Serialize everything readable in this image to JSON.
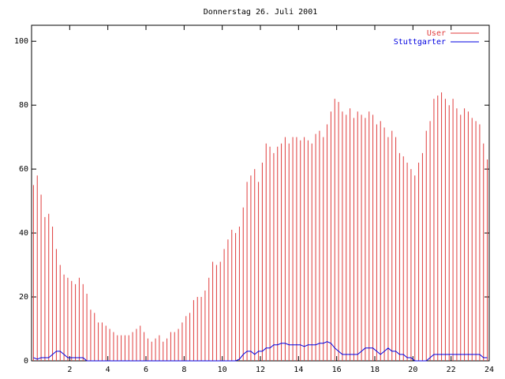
{
  "chart_data": {
    "type": "line",
    "title": "Donnerstag 26. Juli 2001",
    "x": [
      0.1,
      0.3,
      0.5,
      0.7,
      0.9,
      1.1,
      1.3,
      1.5,
      1.7,
      1.9,
      2.1,
      2.3,
      2.5,
      2.7,
      2.9,
      3.1,
      3.3,
      3.5,
      3.7,
      3.9,
      4.1,
      4.3,
      4.5,
      4.7,
      4.9,
      5.1,
      5.3,
      5.5,
      5.7,
      5.9,
      6.1,
      6.3,
      6.5,
      6.7,
      6.9,
      7.1,
      7.3,
      7.5,
      7.7,
      7.9,
      8.1,
      8.3,
      8.5,
      8.7,
      8.9,
      9.1,
      9.3,
      9.5,
      9.7,
      9.9,
      10.1,
      10.3,
      10.5,
      10.7,
      10.9,
      11.1,
      11.3,
      11.5,
      11.7,
      11.9,
      12.1,
      12.3,
      12.5,
      12.7,
      12.9,
      13.1,
      13.3,
      13.5,
      13.7,
      13.9,
      14.1,
      14.3,
      14.5,
      14.7,
      14.9,
      15.1,
      15.3,
      15.5,
      15.7,
      15.9,
      16.1,
      16.3,
      16.5,
      16.7,
      16.9,
      17.1,
      17.3,
      17.5,
      17.7,
      17.9,
      18.1,
      18.3,
      18.5,
      18.7,
      18.9,
      19.1,
      19.3,
      19.5,
      19.7,
      19.9,
      20.1,
      20.3,
      20.5,
      20.7,
      20.9,
      21.1,
      21.3,
      21.5,
      21.7,
      21.9,
      22.1,
      22.3,
      22.5,
      22.7,
      22.9,
      23.1,
      23.3,
      23.5,
      23.7,
      23.9
    ],
    "series": [
      {
        "name": "User",
        "color": "#e03c3c",
        "style": "impulses",
        "values": [
          55,
          58,
          52,
          45,
          46,
          42,
          35,
          30,
          27,
          26,
          25,
          24,
          26,
          24,
          21,
          16,
          15,
          12,
          12,
          11,
          10,
          9,
          8,
          8,
          8,
          8,
          9,
          10,
          11,
          9,
          7,
          6,
          7,
          8,
          6,
          7,
          9,
          9,
          10,
          12,
          14,
          15,
          19,
          20,
          20,
          22,
          26,
          31,
          30,
          31,
          35,
          38,
          41,
          40,
          42,
          48,
          56,
          58,
          60,
          56,
          62,
          68,
          67,
          65,
          67,
          68,
          70,
          68,
          70,
          70,
          69,
          70,
          69,
          68,
          71,
          72,
          70,
          74,
          78,
          82,
          81,
          78,
          77,
          79,
          76,
          78,
          77,
          76,
          78,
          77,
          74,
          75,
          73,
          70,
          72,
          70,
          65,
          64,
          62,
          60,
          58,
          62,
          65,
          72,
          75,
          82,
          83,
          84,
          82,
          80,
          82,
          79,
          77,
          79,
          78,
          76,
          75,
          74,
          68,
          63
        ]
      },
      {
        "name": "Stuttgarter",
        "color": "#0000e0",
        "style": "lines",
        "values": [
          1,
          0.5,
          1,
          1,
          1,
          2,
          3,
          3,
          2,
          1,
          1,
          1,
          1,
          1,
          0,
          0,
          0,
          0,
          0,
          0,
          0,
          0,
          0,
          0,
          0,
          0,
          0,
          0,
          0,
          0,
          0,
          0,
          0,
          0,
          0,
          0,
          0,
          0,
          0,
          0,
          0,
          0,
          0,
          0,
          0,
          0,
          0,
          0,
          0,
          0,
          0,
          0,
          0,
          0,
          0.5,
          2,
          3,
          3,
          2,
          3,
          3,
          4,
          4,
          5,
          5,
          5.5,
          5.5,
          5,
          5,
          5,
          5,
          4.5,
          5,
          5,
          5,
          5.5,
          5.5,
          6,
          5.5,
          4,
          3,
          2,
          2,
          2,
          2,
          2,
          3,
          4,
          4,
          4,
          3,
          2,
          3,
          4,
          3,
          3,
          2,
          2,
          1,
          1,
          0,
          0,
          0,
          0,
          1,
          2,
          2,
          2,
          2,
          2,
          2,
          2,
          2,
          2,
          2,
          2,
          2,
          2,
          1,
          1
        ]
      }
    ],
    "xlim": [
      0,
      24
    ],
    "xticks": [
      2,
      4,
      6,
      8,
      10,
      12,
      14,
      16,
      18,
      20,
      22,
      24
    ],
    "ylim": [
      0,
      105
    ],
    "yticks": [
      0,
      20,
      40,
      60,
      80,
      100
    ],
    "legend": "top-right"
  }
}
